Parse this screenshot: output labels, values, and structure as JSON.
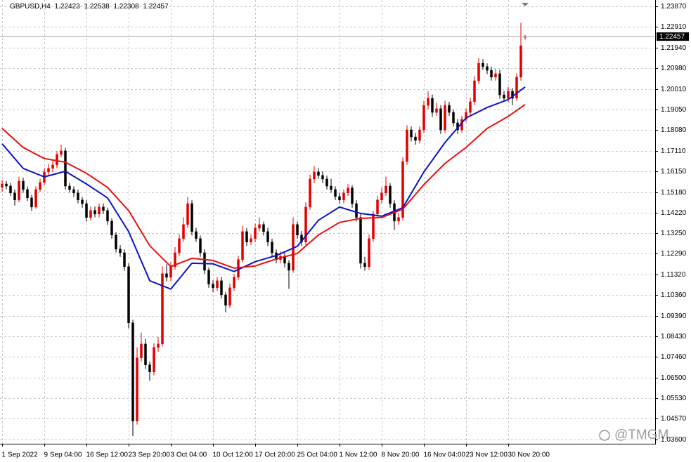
{
  "chart_data": {
    "type": "candlestick",
    "symbol": "GBPUSD,H4",
    "watermark": "@TMGM",
    "up_color": "#e00000",
    "down_color": "#000000",
    "grid": true,
    "ylim": [
      1.034,
      1.2417
    ],
    "yticks": [
      {
        "value": 1.2387,
        "label": "1.23870"
      },
      {
        "value": 1.2291,
        "label": "1.22910"
      },
      {
        "value": 1.2194,
        "label": "1.21940"
      },
      {
        "value": 1.2098,
        "label": "1.20980"
      },
      {
        "value": 1.2001,
        "label": "1.20010"
      },
      {
        "value": 1.1905,
        "label": "1.19050"
      },
      {
        "value": 1.1808,
        "label": "1.18080"
      },
      {
        "value": 1.1711,
        "label": "1.17110"
      },
      {
        "value": 1.1615,
        "label": "1.16150"
      },
      {
        "value": 1.1518,
        "label": "1.15180"
      },
      {
        "value": 1.1422,
        "label": "1.14220"
      },
      {
        "value": 1.1325,
        "label": "1.13250"
      },
      {
        "value": 1.1229,
        "label": "1.12290"
      },
      {
        "value": 1.1132,
        "label": "1.11320"
      },
      {
        "value": 1.1036,
        "label": "1.10360"
      },
      {
        "value": 1.0939,
        "label": "1.09390"
      },
      {
        "value": 1.0843,
        "label": "1.08430"
      },
      {
        "value": 1.0746,
        "label": "1.07460"
      },
      {
        "value": 1.065,
        "label": "1.06500"
      },
      {
        "value": 1.0553,
        "label": "1.05530"
      },
      {
        "value": 1.0457,
        "label": "1.04570"
      },
      {
        "value": 1.036,
        "label": "1.03600"
      }
    ],
    "categories": [
      "1 Sep 2022",
      null,
      null,
      null,
      null,
      null,
      null,
      null,
      null,
      null,
      "9 Sep 04:00",
      null,
      null,
      null,
      null,
      null,
      null,
      null,
      null,
      null,
      "16 Sep 12:00",
      null,
      null,
      null,
      null,
      null,
      null,
      null,
      null,
      null,
      "23 Sep 20:00",
      null,
      null,
      null,
      null,
      null,
      null,
      null,
      null,
      null,
      "3 Oct 04:00",
      null,
      null,
      null,
      null,
      null,
      null,
      null,
      null,
      null,
      "10 Oct 12:00",
      null,
      null,
      null,
      null,
      null,
      null,
      null,
      null,
      null,
      "17 Oct 20:00",
      null,
      null,
      null,
      null,
      null,
      null,
      null,
      null,
      null,
      "25 Oct 04:00",
      null,
      null,
      null,
      null,
      null,
      null,
      null,
      null,
      null,
      "1 Nov 12:00",
      null,
      null,
      null,
      null,
      null,
      null,
      null,
      null,
      null,
      "8 Nov 20:00",
      null,
      null,
      null,
      null,
      null,
      null,
      null,
      null,
      null,
      "16 Nov 04:00",
      null,
      null,
      null,
      null,
      null,
      null,
      null,
      null,
      null,
      "23 Nov 12:00",
      null,
      null,
      null,
      null,
      null,
      null,
      null,
      null,
      null,
      "30 Nov 20:00",
      null,
      null,
      null,
      null
    ],
    "ohlc": [
      [
        1.154,
        1.1575,
        1.152,
        1.1556
      ],
      [
        1.1556,
        1.157,
        1.153,
        1.1546
      ],
      [
        1.1546,
        1.156,
        1.15,
        1.1514
      ],
      [
        1.1514,
        1.153,
        1.1455,
        1.1481
      ],
      [
        1.1481,
        1.159,
        1.147,
        1.1569
      ],
      [
        1.1569,
        1.1585,
        1.1515,
        1.153
      ],
      [
        1.153,
        1.1545,
        1.1475,
        1.1491
      ],
      [
        1.1491,
        1.1505,
        1.143,
        1.1448
      ],
      [
        1.1448,
        1.1545,
        1.144,
        1.153
      ],
      [
        1.153,
        1.158,
        1.152,
        1.1563
      ],
      [
        1.1563,
        1.163,
        1.155,
        1.1612
      ],
      [
        1.1612,
        1.165,
        1.1595,
        1.1629
      ],
      [
        1.1629,
        1.1665,
        1.161,
        1.1645
      ],
      [
        1.1645,
        1.171,
        1.163,
        1.1694
      ],
      [
        1.1694,
        1.174,
        1.168,
        1.1711
      ],
      [
        1.1711,
        1.1725,
        1.153,
        1.1546
      ],
      [
        1.1546,
        1.156,
        1.1515,
        1.153
      ],
      [
        1.153,
        1.1545,
        1.1495,
        1.1514
      ],
      [
        1.1514,
        1.153,
        1.1465,
        1.1481
      ],
      [
        1.1481,
        1.1495,
        1.1445,
        1.1464
      ],
      [
        1.1464,
        1.148,
        1.138,
        1.1399
      ],
      [
        1.1399,
        1.145,
        1.1385,
        1.1432
      ],
      [
        1.1432,
        1.145,
        1.14,
        1.1415
      ],
      [
        1.1415,
        1.1465,
        1.14,
        1.1448
      ],
      [
        1.1448,
        1.1465,
        1.1415,
        1.1432
      ],
      [
        1.1432,
        1.1445,
        1.1365,
        1.1382
      ],
      [
        1.1382,
        1.1395,
        1.13,
        1.1317
      ],
      [
        1.1317,
        1.133,
        1.1235,
        1.1251
      ],
      [
        1.1251,
        1.127,
        1.1215,
        1.1234
      ],
      [
        1.1234,
        1.125,
        1.115,
        1.1169
      ],
      [
        1.1169,
        1.1185,
        1.088,
        1.0906
      ],
      [
        1.0906,
        1.092,
        1.0376,
        1.0446
      ],
      [
        1.0446,
        1.079,
        1.043,
        1.0742
      ],
      [
        1.0742,
        1.086,
        1.0725,
        1.0807
      ],
      [
        1.0807,
        1.083,
        1.069,
        1.0709
      ],
      [
        1.0709,
        1.0725,
        1.0635,
        1.0676
      ],
      [
        1.0676,
        1.081,
        1.066,
        1.0791
      ],
      [
        1.0791,
        1.084,
        1.077,
        1.0807
      ],
      [
        1.0807,
        1.117,
        1.0795,
        1.1136
      ],
      [
        1.1136,
        1.118,
        1.11,
        1.1119
      ],
      [
        1.1119,
        1.119,
        1.11,
        1.1169
      ],
      [
        1.1169,
        1.126,
        1.1155,
        1.1234
      ],
      [
        1.1234,
        1.132,
        1.122,
        1.13
      ],
      [
        1.13,
        1.14,
        1.1285,
        1.1366
      ],
      [
        1.1366,
        1.1495,
        1.135,
        1.1464
      ],
      [
        1.1464,
        1.148,
        1.1315,
        1.1333
      ],
      [
        1.1333,
        1.135,
        1.1285,
        1.13
      ],
      [
        1.13,
        1.1315,
        1.1215,
        1.1234
      ],
      [
        1.1234,
        1.125,
        1.1135,
        1.1152
      ],
      [
        1.1152,
        1.1165,
        1.107,
        1.1087
      ],
      [
        1.1087,
        1.1105,
        1.105,
        1.107
      ],
      [
        1.107,
        1.112,
        1.1055,
        1.1103
      ],
      [
        1.1103,
        1.112,
        1.102,
        1.1037
      ],
      [
        1.1037,
        1.105,
        1.0955,
        1.0988
      ],
      [
        1.0988,
        1.109,
        1.0975,
        1.107
      ],
      [
        1.107,
        1.1135,
        1.1055,
        1.1119
      ],
      [
        1.1119,
        1.122,
        1.1105,
        1.1202
      ],
      [
        1.1202,
        1.136,
        1.119,
        1.1333
      ],
      [
        1.1333,
        1.135,
        1.1265,
        1.1284
      ],
      [
        1.1284,
        1.132,
        1.127,
        1.13
      ],
      [
        1.13,
        1.137,
        1.1285,
        1.1349
      ],
      [
        1.1349,
        1.14,
        1.1335,
        1.1366
      ],
      [
        1.1366,
        1.138,
        1.1315,
        1.1333
      ],
      [
        1.1333,
        1.135,
        1.1265,
        1.1284
      ],
      [
        1.1284,
        1.13,
        1.1215,
        1.1234
      ],
      [
        1.1234,
        1.125,
        1.1185,
        1.1202
      ],
      [
        1.1202,
        1.124,
        1.1185,
        1.1218
      ],
      [
        1.1218,
        1.1235,
        1.1165,
        1.1185
      ],
      [
        1.1185,
        1.12,
        1.1065,
        1.1152
      ],
      [
        1.1152,
        1.14,
        1.114,
        1.1366
      ],
      [
        1.1366,
        1.138,
        1.13,
        1.1317
      ],
      [
        1.1317,
        1.1335,
        1.1265,
        1.1284
      ],
      [
        1.1284,
        1.147,
        1.127,
        1.1448
      ],
      [
        1.1448,
        1.16,
        1.1435,
        1.1579
      ],
      [
        1.1579,
        1.164,
        1.156,
        1.1612
      ],
      [
        1.1612,
        1.163,
        1.158,
        1.1596
      ],
      [
        1.1596,
        1.1615,
        1.156,
        1.1579
      ],
      [
        1.1579,
        1.1595,
        1.153,
        1.1546
      ],
      [
        1.1546,
        1.158,
        1.1515,
        1.153
      ],
      [
        1.153,
        1.1545,
        1.148,
        1.1497
      ],
      [
        1.1497,
        1.1515,
        1.1465,
        1.1481
      ],
      [
        1.1481,
        1.153,
        1.1465,
        1.1514
      ],
      [
        1.1514,
        1.1555,
        1.15,
        1.1537
      ],
      [
        1.1537,
        1.155,
        1.1445,
        1.1464
      ],
      [
        1.1464,
        1.148,
        1.138,
        1.1399
      ],
      [
        1.1399,
        1.1415,
        1.116,
        1.1185
      ],
      [
        1.1185,
        1.1215,
        1.115,
        1.1169
      ],
      [
        1.1169,
        1.132,
        1.1155,
        1.13
      ],
      [
        1.13,
        1.143,
        1.1285,
        1.1415
      ],
      [
        1.1415,
        1.15,
        1.14,
        1.1481
      ],
      [
        1.1481,
        1.154,
        1.1465,
        1.1514
      ],
      [
        1.1514,
        1.159,
        1.15,
        1.1546
      ],
      [
        1.1546,
        1.156,
        1.1445,
        1.1464
      ],
      [
        1.1464,
        1.148,
        1.134,
        1.1382
      ],
      [
        1.1382,
        1.142,
        1.1365,
        1.1399
      ],
      [
        1.1399,
        1.168,
        1.1385,
        1.1661
      ],
      [
        1.1661,
        1.183,
        1.1645,
        1.1809
      ],
      [
        1.1809,
        1.1825,
        1.1755,
        1.1776
      ],
      [
        1.1776,
        1.1795,
        1.174,
        1.176
      ],
      [
        1.176,
        1.1825,
        1.1745,
        1.1809
      ],
      [
        1.1809,
        1.1945,
        1.1795,
        1.1924
      ],
      [
        1.1924,
        1.199,
        1.1905,
        1.1957
      ],
      [
        1.1957,
        1.1975,
        1.187,
        1.1891
      ],
      [
        1.1891,
        1.1935,
        1.1875,
        1.1908
      ],
      [
        1.1908,
        1.1925,
        1.179,
        1.1809
      ],
      [
        1.1809,
        1.1945,
        1.1795,
        1.1924
      ],
      [
        1.1924,
        1.194,
        1.1875,
        1.1891
      ],
      [
        1.1891,
        1.1905,
        1.1825,
        1.1842
      ],
      [
        1.1842,
        1.186,
        1.179,
        1.1809
      ],
      [
        1.1809,
        1.1875,
        1.1795,
        1.1859
      ],
      [
        1.1859,
        1.191,
        1.1845,
        1.1891
      ],
      [
        1.1891,
        1.196,
        1.1875,
        1.1941
      ],
      [
        1.1941,
        1.206,
        1.1925,
        1.2039
      ],
      [
        1.2039,
        1.2145,
        1.2025,
        1.2121
      ],
      [
        1.2121,
        1.214,
        1.209,
        1.2105
      ],
      [
        1.2105,
        1.212,
        1.207,
        1.2088
      ],
      [
        1.2088,
        1.2105,
        1.204,
        1.2056
      ],
      [
        1.2056,
        1.2095,
        1.204,
        1.2072
      ],
      [
        1.2072,
        1.209,
        1.1955,
        1.1973
      ],
      [
        1.1973,
        1.199,
        1.194,
        1.1957
      ],
      [
        1.1957,
        1.201,
        1.194,
        1.199
      ],
      [
        1.199,
        1.2005,
        1.1925,
        1.1957
      ],
      [
        1.1957,
        1.2075,
        1.1945,
        1.2056
      ],
      [
        1.2056,
        1.231,
        1.204,
        1.2203
      ],
      [
        1.22423,
        1.22538,
        1.22308,
        1.22457
      ]
    ],
    "ma_index": [
      0,
      5,
      10,
      15,
      20,
      25,
      30,
      35,
      40,
      45,
      50,
      55,
      60,
      65,
      70,
      75,
      80,
      85,
      90,
      95,
      100,
      105,
      110,
      115,
      120,
      124
    ],
    "ma": [
      {
        "color": "#0a14c8",
        "values": [
          1.1744,
          1.1629,
          1.1589,
          1.1615,
          1.1556,
          1.1491,
          1.1333,
          1.1103,
          1.1064,
          1.1185,
          1.1182,
          1.1146,
          1.1192,
          1.1221,
          1.1264,
          1.1386,
          1.1448,
          1.1418,
          1.1405,
          1.1445,
          1.1612,
          1.175,
          1.1865,
          1.1914,
          1.1951,
          1.201
        ]
      },
      {
        "color": "#e81010",
        "values": [
          1.1816,
          1.1727,
          1.1675,
          1.1658,
          1.1606,
          1.154,
          1.1431,
          1.1267,
          1.1169,
          1.1208,
          1.1198,
          1.1162,
          1.1172,
          1.1205,
          1.1231,
          1.1317,
          1.1376,
          1.1395,
          1.1399,
          1.1438,
          1.1553,
          1.1652,
          1.1727,
          1.1816,
          1.1872,
          1.1928
        ]
      }
    ]
  }
}
